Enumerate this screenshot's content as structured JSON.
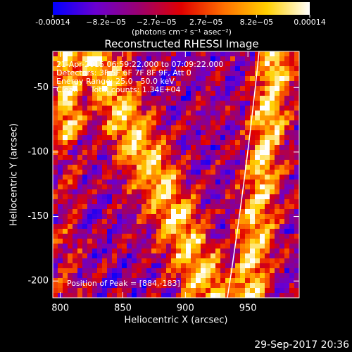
{
  "chart_data": {
    "type": "image",
    "title": "Reconstructed RHESSI Image",
    "x_label": "Heliocentric X (arcsec)",
    "y_label": "Heliocentric Y (arcsec)",
    "xlim": [
      794,
      991
    ],
    "ylim": [
      -213,
      -22
    ],
    "xticks": [
      800,
      850,
      900,
      950
    ],
    "yticks": [
      -200,
      -150,
      -100,
      -50
    ],
    "colorbar": {
      "unit": "(photons cm⁻² s⁻¹ asec⁻²)",
      "clim": [
        -0.00014,
        0.00014
      ],
      "ticks": [
        {
          "value": -0.00014,
          "label": "-0.00014"
        },
        {
          "value": -8.2e-05,
          "label": "−8.2e−05"
        },
        {
          "value": -2.7e-05,
          "label": "−2.7e−05"
        },
        {
          "value": 2.7e-05,
          "label": "2.7e−05"
        },
        {
          "value": 8.2e-05,
          "label": "8.2e−05"
        },
        {
          "value": 0.00014,
          "label": "0.00014"
        }
      ],
      "colors": [
        "#0000ff",
        "#6a00d0",
        "#9a0070",
        "#e00000",
        "#ff7000",
        "#ffd000",
        "#ffffff"
      ]
    },
    "annotations": [
      "21-Apr-2015 06:59:22.000 to 07:09:22.000",
      "Detectors: 3F 5F 6F 7F 8F 9F, Att 0",
      "Energy Range: 25.0 - 50.0 keV",
      "Clean     Total counts: 1.34E+04"
    ],
    "peak_label": "Position of Peak = [884,-183]",
    "timestamp": "29-Sep-2017 20:36"
  }
}
